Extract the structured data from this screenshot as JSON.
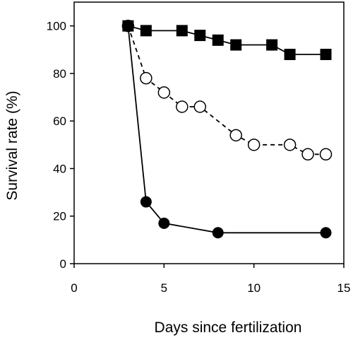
{
  "chart_data": {
    "type": "scatter",
    "title": "",
    "xlabel": "Days since fertilization",
    "ylabel": "Survival rate (%)",
    "xlim": [
      0,
      15
    ],
    "ylim": [
      0,
      110
    ],
    "xticks": [
      0,
      5,
      10,
      15
    ],
    "yticks": [
      0,
      20,
      40,
      60,
      80,
      100
    ],
    "grid": false,
    "legend": "none",
    "series": [
      {
        "marker": "square-filled",
        "line": "solid",
        "color": "#000000",
        "x": [
          3,
          4,
          6,
          7,
          8,
          9,
          11,
          12,
          14
        ],
        "y": [
          100,
          98,
          98,
          96,
          94,
          92,
          92,
          88,
          88
        ]
      },
      {
        "marker": "circle-open",
        "line": "dashed",
        "color": "#000000",
        "x": [
          3,
          4,
          5,
          6,
          7,
          9,
          10,
          12,
          13,
          14
        ],
        "y": [
          100,
          78,
          72,
          66,
          66,
          54,
          50,
          50,
          46,
          46
        ]
      },
      {
        "marker": "circle-filled",
        "line": "solid",
        "color": "#000000",
        "x": [
          3,
          4,
          5,
          8,
          14
        ],
        "y": [
          100,
          26,
          17,
          13,
          13
        ]
      }
    ]
  }
}
